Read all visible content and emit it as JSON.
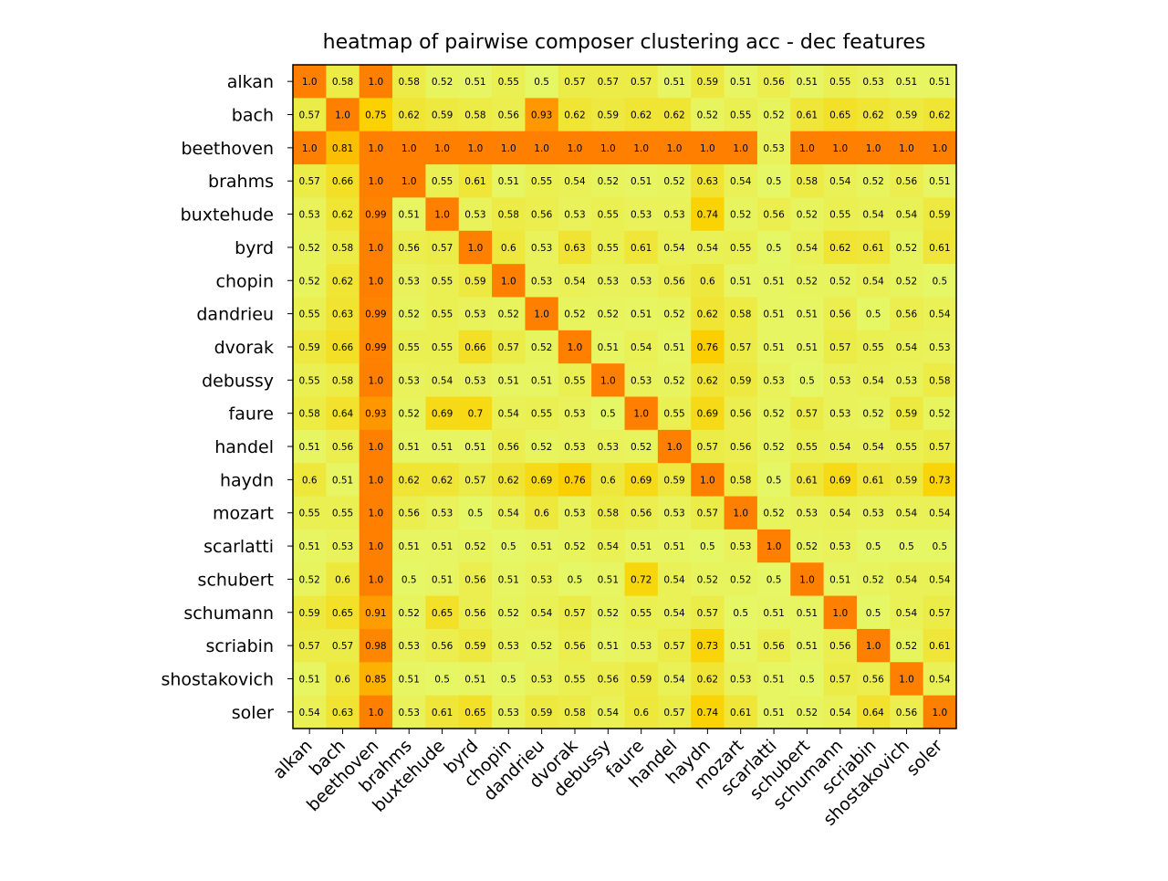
{
  "chart_data": {
    "type": "heatmap",
    "title": "heatmap of pairwise composer clustering acc - dec features",
    "xlabel": "",
    "ylabel": "",
    "rows": [
      "alkan",
      "bach",
      "beethoven",
      "brahms",
      "buxtehude",
      "byrd",
      "chopin",
      "dandrieu",
      "dvorak",
      "debussy",
      "faure",
      "handel",
      "haydn",
      "mozart",
      "scarlatti",
      "schubert",
      "schumann",
      "scriabin",
      "shostakovich",
      "soler"
    ],
    "columns": [
      "alkan",
      "bach",
      "beethoven",
      "brahms",
      "buxtehude",
      "byrd",
      "chopin",
      "dandrieu",
      "dvorak",
      "debussy",
      "faure",
      "handel",
      "haydn",
      "mozart",
      "scarlatti",
      "schubert",
      "schumann",
      "scriabin",
      "shostakovich",
      "soler"
    ],
    "values": [
      [
        1.0,
        0.58,
        1.0,
        0.58,
        0.52,
        0.51,
        0.55,
        0.5,
        0.57,
        0.57,
        0.57,
        0.51,
        0.59,
        0.51,
        0.56,
        0.51,
        0.55,
        0.53,
        0.51,
        0.51
      ],
      [
        0.57,
        1.0,
        0.75,
        0.62,
        0.59,
        0.58,
        0.56,
        0.93,
        0.62,
        0.59,
        0.62,
        0.62,
        0.52,
        0.55,
        0.52,
        0.61,
        0.65,
        0.62,
        0.59,
        0.62
      ],
      [
        1.0,
        0.81,
        1.0,
        1.0,
        1.0,
        1.0,
        1.0,
        1.0,
        1.0,
        1.0,
        1.0,
        1.0,
        1.0,
        1.0,
        0.53,
        1.0,
        1.0,
        1.0,
        1.0,
        1.0
      ],
      [
        0.57,
        0.66,
        1.0,
        1.0,
        0.55,
        0.61,
        0.51,
        0.55,
        0.54,
        0.52,
        0.51,
        0.52,
        0.63,
        0.54,
        0.5,
        0.58,
        0.54,
        0.52,
        0.56,
        0.51
      ],
      [
        0.53,
        0.62,
        0.99,
        0.51,
        1.0,
        0.53,
        0.58,
        0.56,
        0.53,
        0.55,
        0.53,
        0.53,
        0.74,
        0.52,
        0.56,
        0.52,
        0.55,
        0.54,
        0.54,
        0.59
      ],
      [
        0.52,
        0.58,
        1.0,
        0.56,
        0.57,
        1.0,
        0.6,
        0.53,
        0.63,
        0.55,
        0.61,
        0.54,
        0.54,
        0.55,
        0.5,
        0.54,
        0.62,
        0.61,
        0.52,
        0.61
      ],
      [
        0.52,
        0.62,
        1.0,
        0.53,
        0.55,
        0.59,
        1.0,
        0.53,
        0.54,
        0.53,
        0.53,
        0.56,
        0.6,
        0.51,
        0.51,
        0.52,
        0.52,
        0.54,
        0.52,
        0.5
      ],
      [
        0.55,
        0.63,
        0.99,
        0.52,
        0.55,
        0.53,
        0.52,
        1.0,
        0.52,
        0.52,
        0.51,
        0.52,
        0.62,
        0.58,
        0.51,
        0.51,
        0.56,
        0.5,
        0.56,
        0.54
      ],
      [
        0.59,
        0.66,
        0.99,
        0.55,
        0.55,
        0.66,
        0.57,
        0.52,
        1.0,
        0.51,
        0.54,
        0.51,
        0.76,
        0.57,
        0.51,
        0.51,
        0.57,
        0.55,
        0.54,
        0.53
      ],
      [
        0.55,
        0.58,
        1.0,
        0.53,
        0.54,
        0.53,
        0.51,
        0.51,
        0.55,
        1.0,
        0.53,
        0.52,
        0.62,
        0.59,
        0.53,
        0.5,
        0.53,
        0.54,
        0.53,
        0.58
      ],
      [
        0.58,
        0.64,
        0.93,
        0.52,
        0.69,
        0.7,
        0.54,
        0.55,
        0.53,
        0.5,
        1.0,
        0.55,
        0.69,
        0.56,
        0.52,
        0.57,
        0.53,
        0.52,
        0.59,
        0.52
      ],
      [
        0.51,
        0.56,
        1.0,
        0.51,
        0.51,
        0.51,
        0.56,
        0.52,
        0.53,
        0.53,
        0.52,
        1.0,
        0.57,
        0.56,
        0.52,
        0.55,
        0.54,
        0.54,
        0.55,
        0.57
      ],
      [
        0.6,
        0.51,
        1.0,
        0.62,
        0.62,
        0.57,
        0.62,
        0.69,
        0.76,
        0.6,
        0.69,
        0.59,
        1.0,
        0.58,
        0.5,
        0.61,
        0.69,
        0.61,
        0.59,
        0.73
      ],
      [
        0.55,
        0.55,
        1.0,
        0.56,
        0.53,
        0.5,
        0.54,
        0.6,
        0.53,
        0.58,
        0.56,
        0.53,
        0.57,
        1.0,
        0.52,
        0.53,
        0.54,
        0.53,
        0.54,
        0.54
      ],
      [
        0.51,
        0.53,
        1.0,
        0.51,
        0.51,
        0.52,
        0.5,
        0.51,
        0.52,
        0.54,
        0.51,
        0.51,
        0.5,
        0.53,
        1.0,
        0.52,
        0.53,
        0.5,
        0.5,
        0.5
      ],
      [
        0.52,
        0.6,
        1.0,
        0.5,
        0.51,
        0.56,
        0.51,
        0.53,
        0.5,
        0.51,
        0.72,
        0.54,
        0.52,
        0.52,
        0.5,
        1.0,
        0.51,
        0.52,
        0.54,
        0.54
      ],
      [
        0.59,
        0.65,
        0.91,
        0.52,
        0.65,
        0.56,
        0.52,
        0.54,
        0.57,
        0.52,
        0.55,
        0.54,
        0.57,
        0.5,
        0.51,
        0.51,
        1.0,
        0.5,
        0.54,
        0.57
      ],
      [
        0.57,
        0.57,
        0.98,
        0.53,
        0.56,
        0.59,
        0.53,
        0.52,
        0.56,
        0.51,
        0.53,
        0.57,
        0.73,
        0.51,
        0.56,
        0.51,
        0.56,
        1.0,
        0.52,
        0.61
      ],
      [
        0.51,
        0.6,
        0.85,
        0.51,
        0.5,
        0.51,
        0.5,
        0.53,
        0.55,
        0.56,
        0.59,
        0.54,
        0.62,
        0.53,
        0.51,
        0.5,
        0.57,
        0.56,
        1.0,
        0.54
      ],
      [
        0.54,
        0.63,
        1.0,
        0.53,
        0.61,
        0.65,
        0.53,
        0.59,
        0.58,
        0.54,
        0.6,
        0.57,
        0.74,
        0.61,
        0.51,
        0.52,
        0.54,
        0.64,
        0.56,
        1.0
      ]
    ],
    "value_range": [
      0.5,
      1.0
    ],
    "colormap": {
      "low": "#e6f766",
      "mid": "#fbd100",
      "high": "#ff8000"
    },
    "grid": false,
    "legend": "none"
  }
}
